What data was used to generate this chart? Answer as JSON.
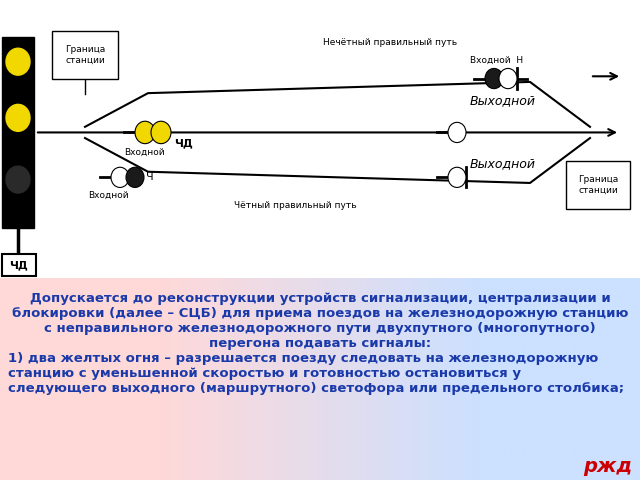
{
  "bg_top": "#c8c8c8",
  "bg_diagram": "#ffffff",
  "text_color": "#1a3aaa",
  "title_text_center": [
    "Допускается до реконструкции устройств сигнализации, централизации и",
    "блокировки (далее – СЦБ) для приема поездов на железнодорожную станцию",
    "с неправильного железнодорожного пути двухпутного (многопутного)",
    "перегона подавать сигналы:"
  ],
  "title_text_left": [
    "1) два желтых огня – разрешается поезду следовать на железнодорожную",
    "станцию с уменьшенной скоростью и готовностью остановиться у",
    "следующего выходного (маршрутного) светофора или предельного столбика;"
  ],
  "logo_text": "ржд",
  "logo_color": "#cc0000",
  "yellow": "#f0d800",
  "dark": "#1a1a1a",
  "white": "#ffffff",
  "black": "#000000"
}
